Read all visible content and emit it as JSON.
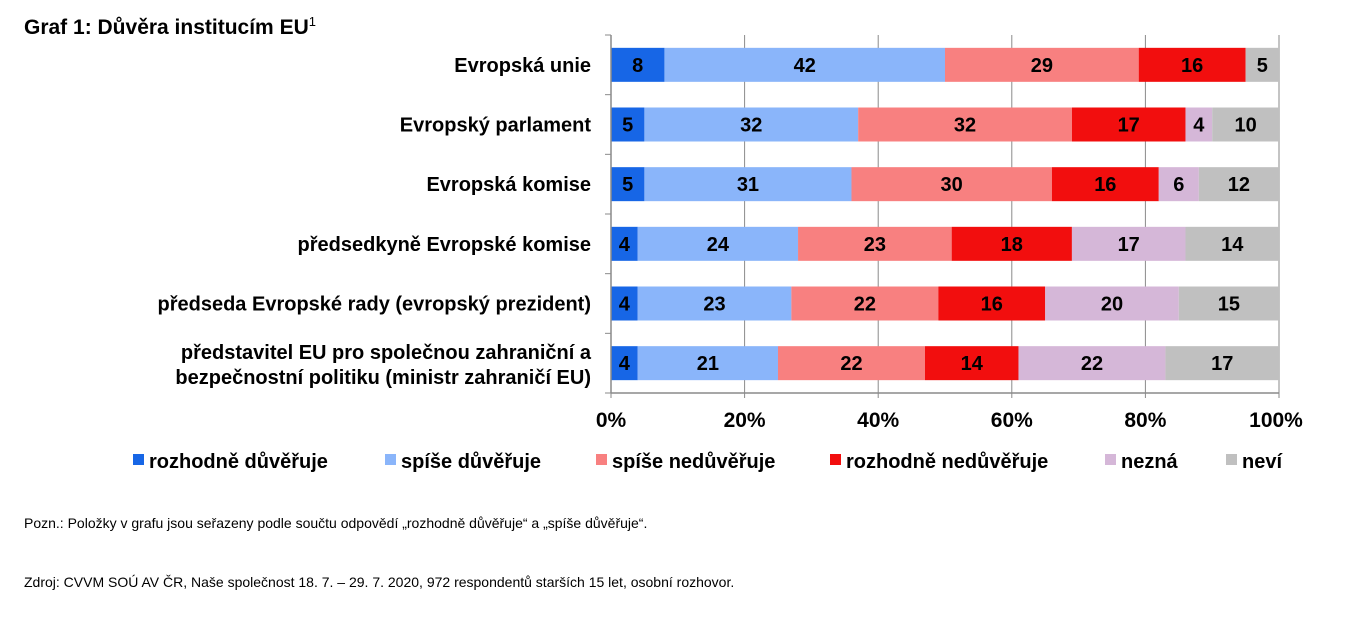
{
  "title": "Graf 1: Důvěra institucím EU",
  "title_footnote": "1",
  "chart_data": {
    "type": "bar",
    "orientation": "horizontal",
    "stacked": true,
    "percent_stacked": true,
    "categories": [
      [
        "Evropská unie"
      ],
      [
        "Evropský parlament"
      ],
      [
        "Evropská komise"
      ],
      [
        "předsedkyně Evropské komise"
      ],
      [
        "předseda Evropské rady (evropský prezident)"
      ],
      [
        "představitel EU pro společnou zahraniční a",
        "bezpečnostní politiku (ministr zahraničí EU)"
      ]
    ],
    "series": [
      {
        "name": "rozhodně důvěřuje",
        "color": "#1766e6",
        "values": [
          8,
          5,
          5,
          4,
          4,
          4
        ]
      },
      {
        "name": "spíše důvěřuje",
        "color": "#8ab5fa",
        "values": [
          42,
          32,
          31,
          24,
          23,
          21
        ]
      },
      {
        "name": "spíše nedůvěřuje",
        "color": "#f88080",
        "values": [
          29,
          32,
          30,
          23,
          22,
          22
        ]
      },
      {
        "name": "rozhodně nedůvěřuje",
        "color": "#f20e0e",
        "values": [
          16,
          17,
          16,
          18,
          16,
          14
        ]
      },
      {
        "name": "nezná",
        "color": "#d5b7d8",
        "values": [
          null,
          4,
          6,
          17,
          20,
          22
        ]
      },
      {
        "name": "neví",
        "color": "#c0c0c0",
        "values": [
          5,
          10,
          12,
          14,
          15,
          17
        ]
      }
    ],
    "x_ticks": [
      "0%",
      "20%",
      "40%",
      "60%",
      "80%",
      "100%"
    ],
    "xlim": [
      0,
      100
    ],
    "grid": true,
    "legend_position": "bottom"
  },
  "notes": {
    "poznamka": "Pozn.: Položky v grafu jsou seřazeny podle součtu odpovědí „rozhodně důvěřuje“ a „spíše důvěřuje“.",
    "zdroj": "Zdroj: CVVM SOÚ AV ČR, Naše společnost 18. 7. – 29. 7. 2020, 972 respondentů starších 15 let, osobní rozhovor."
  }
}
